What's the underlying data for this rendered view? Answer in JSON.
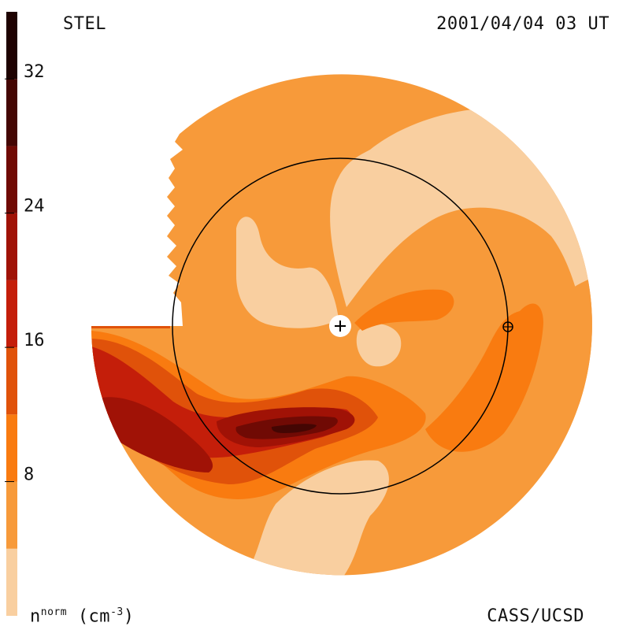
{
  "header": {
    "observatory": "STEL",
    "timestamp": "2001/04/04 03 UT"
  },
  "footer": {
    "credit": "CASS/UCSD",
    "units_base": "n",
    "units_sup": "norm",
    "units_paren": "(cm",
    "units_exp": "-3",
    "units_close": ")"
  },
  "colorbar": {
    "ticks": [
      "8",
      "16",
      "24",
      "32"
    ],
    "levels": [
      {
        "from": 0,
        "to": 4,
        "color": "#f9cfa0"
      },
      {
        "from": 4,
        "to": 8,
        "color": "#f79a3a"
      },
      {
        "from": 8,
        "to": 12,
        "color": "#f97b10"
      },
      {
        "from": 12,
        "to": 16,
        "color": "#e0520a"
      },
      {
        "from": 16,
        "to": 20,
        "color": "#c41e0a"
      },
      {
        "from": 20,
        "to": 24,
        "color": "#a01206"
      },
      {
        "from": 24,
        "to": 28,
        "color": "#700a04"
      },
      {
        "from": 28,
        "to": 32,
        "color": "#440603"
      },
      {
        "from": 32,
        "to": 36,
        "color": "#1e0201"
      }
    ]
  },
  "chart_data": {
    "type": "heatmap",
    "title": "",
    "quantity": "n norm (cm-3)",
    "value_range": [
      0,
      36
    ],
    "tick_values": [
      8,
      16,
      24,
      32
    ],
    "features": [
      {
        "name": "sun",
        "symbol": "+"
      },
      {
        "name": "earth",
        "symbol": "⊕"
      },
      {
        "name": "earth-orbit"
      }
    ]
  }
}
